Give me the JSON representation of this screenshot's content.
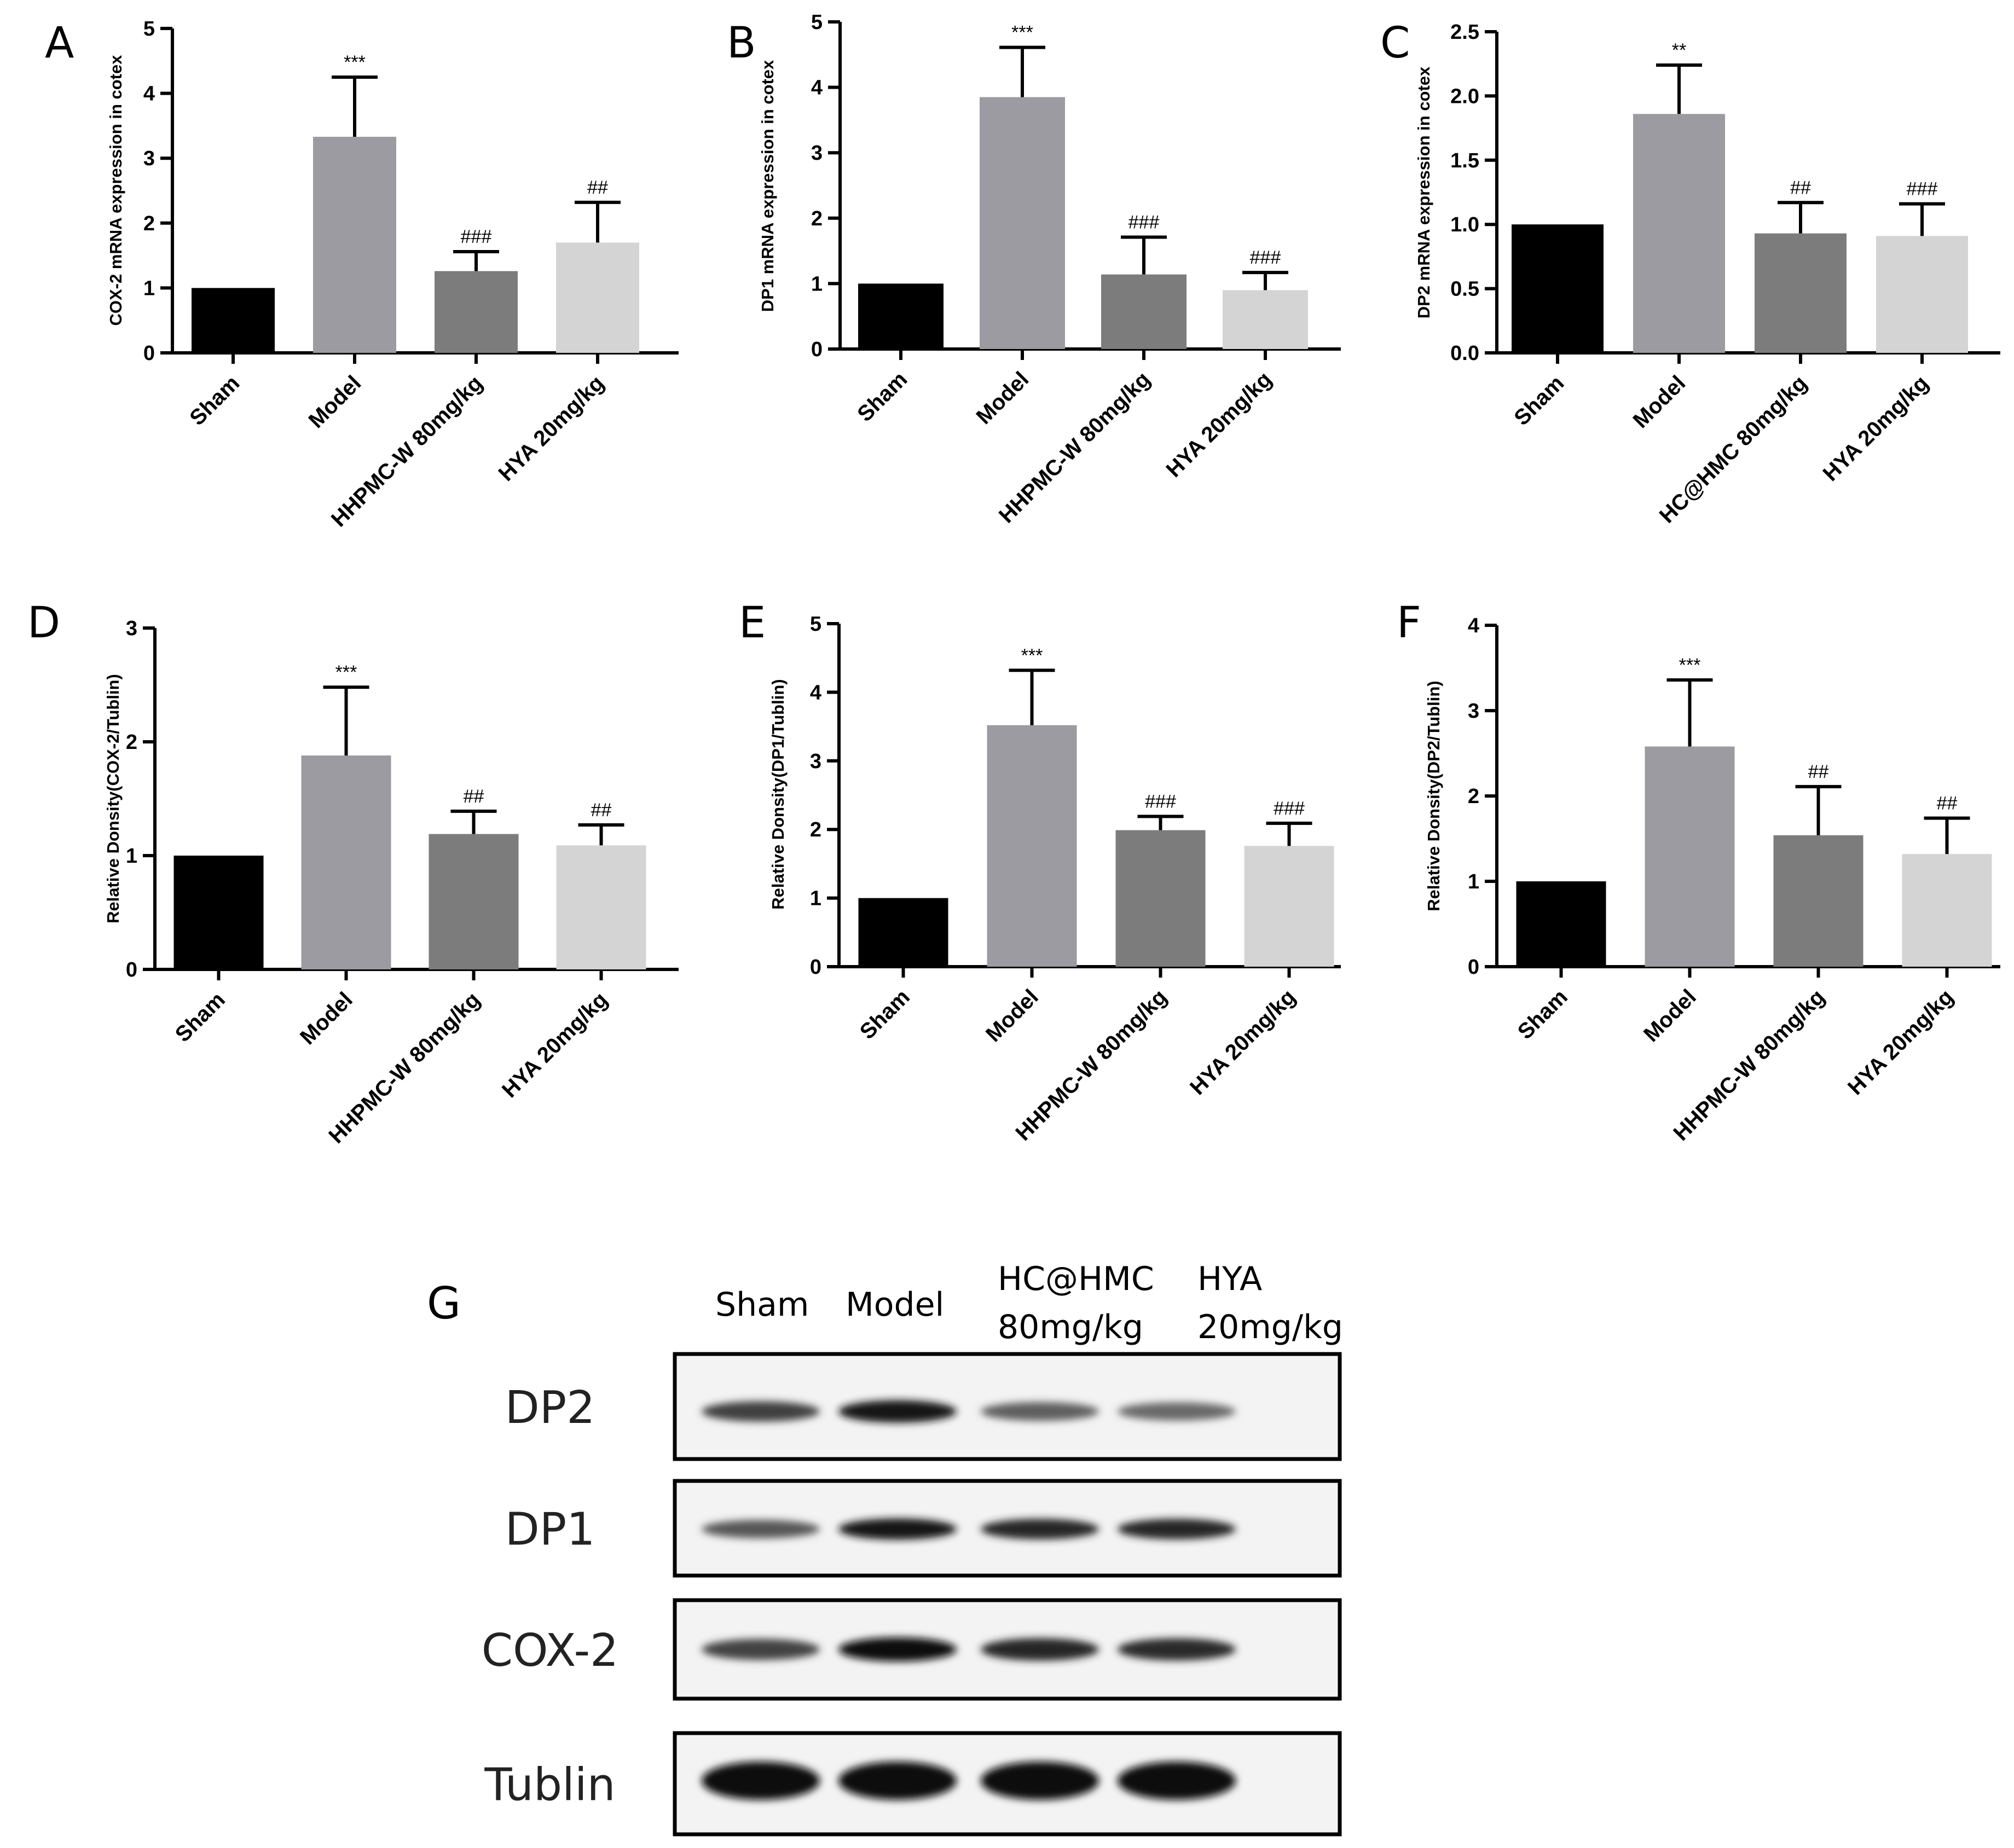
{
  "categories_main": [
    "Sham",
    "Model",
    "HHPMC-W 80mg/kg",
    "HYA 20mg/kg"
  ],
  "categories_c": [
    "Sham",
    "Model",
    "HC@HMC 80mg/kg",
    "HYA 20mg/kg"
  ],
  "bar_colors": [
    "#000000",
    "#9b9ba1",
    "#7c7c7c",
    "#d4d4d4"
  ],
  "chart_data": [
    {
      "panel": "A",
      "type": "bar",
      "ylabel": "COX-2 mRNA expression in cotex",
      "ylim": [
        0,
        5
      ],
      "yticks": [
        "0",
        "1",
        "2",
        "3",
        "4",
        "5"
      ],
      "categories": [
        "Sham",
        "Model",
        "HHPMC-W 80mg/kg",
        "HYA 20mg/kg"
      ],
      "values": [
        1.0,
        3.33,
        1.26,
        1.7
      ],
      "errors": [
        0,
        0.92,
        0.3,
        0.62
      ],
      "annotations": [
        "",
        "***",
        "###",
        "##"
      ]
    },
    {
      "panel": "B",
      "type": "bar",
      "ylabel": "DP1 mRNA expression in cotex",
      "ylim": [
        0,
        5
      ],
      "yticks": [
        "0",
        "1",
        "2",
        "3",
        "4",
        "5"
      ],
      "categories": [
        "Sham",
        "Model",
        "HHPMC-W 80mg/kg",
        "HYA 20mg/kg"
      ],
      "values": [
        1.0,
        3.85,
        1.14,
        0.9
      ],
      "errors": [
        0,
        0.76,
        0.57,
        0.27
      ],
      "annotations": [
        "",
        "***",
        "###",
        "###"
      ]
    },
    {
      "panel": "C",
      "type": "bar",
      "ylabel": "DP2 mRNA expression in cotex",
      "ylim": [
        0,
        2.5
      ],
      "yticks": [
        "0.0",
        "0.5",
        "1.0",
        "1.5",
        "2.0",
        "2.5"
      ],
      "categories": [
        "Sham",
        "Model",
        "HC@HMC 80mg/kg",
        "HYA 20mg/kg"
      ],
      "values": [
        1.0,
        1.86,
        0.93,
        0.91
      ],
      "errors": [
        0,
        0.38,
        0.24,
        0.25
      ],
      "annotations": [
        "",
        "**",
        "##",
        "###"
      ]
    },
    {
      "panel": "D",
      "type": "bar",
      "ylabel": "Relative Donsity(COX-2/Tublin)",
      "ylim": [
        0,
        3
      ],
      "yticks": [
        "0",
        "1",
        "2",
        "3"
      ],
      "categories": [
        "Sham",
        "Model",
        "HHPMC-W 80mg/kg",
        "HYA 20mg/kg"
      ],
      "values": [
        1.0,
        1.88,
        1.19,
        1.09
      ],
      "errors": [
        0,
        0.6,
        0.2,
        0.18
      ],
      "annotations": [
        "",
        "***",
        "##",
        "##"
      ]
    },
    {
      "panel": "E",
      "type": "bar",
      "ylabel": "Relative Donsity(DP1/Tublin)",
      "ylim": [
        0,
        5
      ],
      "yticks": [
        "0",
        "1",
        "2",
        "3",
        "4",
        "5"
      ],
      "categories": [
        "Sham",
        "Model",
        "HHPMC-W 80mg/kg",
        "HYA 20mg/kg"
      ],
      "values": [
        1.0,
        3.52,
        1.99,
        1.76
      ],
      "errors": [
        0,
        0.8,
        0.2,
        0.33
      ],
      "annotations": [
        "",
        "***",
        "###",
        "###"
      ]
    },
    {
      "panel": "F",
      "type": "bar",
      "ylabel": "Relative Donsity(DP2/Tublin)",
      "ylim": [
        0,
        4
      ],
      "yticks": [
        "0",
        "1",
        "2",
        "3",
        "4"
      ],
      "categories": [
        "Sham",
        "Model",
        "HHPMC-W 80mg/kg",
        "HYA 20mg/kg"
      ],
      "values": [
        1.0,
        2.58,
        1.54,
        1.32
      ],
      "errors": [
        0,
        0.78,
        0.57,
        0.42
      ],
      "annotations": [
        "",
        "***",
        "##",
        "##"
      ]
    }
  ],
  "blot": {
    "panel": "G",
    "lanes": [
      {
        "line1": "Sham",
        "line2": ""
      },
      {
        "line1": "Model",
        "line2": ""
      },
      {
        "line1": "HC@HMC",
        "line2": "80mg/kg"
      },
      {
        "line1": "HYA",
        "line2": "20mg/kg"
      }
    ],
    "rows": [
      "DP2",
      "DP1",
      "COX-2",
      "Tublin"
    ],
    "band_intensity": [
      [
        0.72,
        0.95,
        0.55,
        0.5
      ],
      [
        0.6,
        0.92,
        0.85,
        0.85
      ],
      [
        0.7,
        1.0,
        0.85,
        0.82
      ],
      [
        1.0,
        1.0,
        1.0,
        1.0
      ]
    ]
  }
}
